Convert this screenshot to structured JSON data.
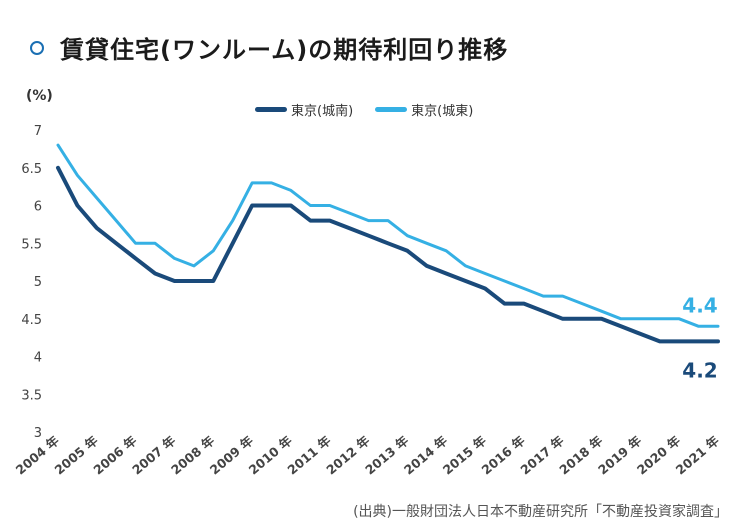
{
  "title": "賃貸住宅(ワンルーム)の期待利回り推移",
  "unit_label": "(%)",
  "source": "(出典)一般財団法人日本不動産研究所「不動産投資家調査」",
  "colors": {
    "south": "#1a4a7a",
    "east": "#35b0e4",
    "axis_text": "#444444"
  },
  "chart_data": {
    "type": "line",
    "title": "賃貸住宅(ワンルーム)の期待利回り推移",
    "ylabel": "(%)",
    "ylim": [
      3,
      7
    ],
    "yticks": [
      "3",
      "3.5",
      "4",
      "4.5",
      "5",
      "5.5",
      "6",
      "6.5",
      "7"
    ],
    "x_labels": [
      "2004 年",
      "2005 年",
      "2006 年",
      "2007 年",
      "2008 年",
      "2009 年",
      "2010 年",
      "2011 年",
      "2012 年",
      "2013 年",
      "2014 年",
      "2015 年",
      "2016 年",
      "2017 年",
      "2018 年",
      "2019 年",
      "2020 年",
      "2021 年"
    ],
    "x": [
      2004.0,
      2004.5,
      2005.0,
      2005.5,
      2006.0,
      2006.5,
      2007.0,
      2007.5,
      2008.0,
      2008.5,
      2009.0,
      2009.5,
      2010.0,
      2010.5,
      2011.0,
      2011.5,
      2012.0,
      2012.5,
      2013.0,
      2013.5,
      2014.0,
      2014.5,
      2015.0,
      2015.5,
      2016.0,
      2016.5,
      2017.0,
      2017.5,
      2018.0,
      2018.5,
      2019.0,
      2019.5,
      2020.0,
      2020.5,
      2021.0
    ],
    "series": [
      {
        "name": "東京(城南)",
        "end_label": "4.2",
        "values": [
          6.5,
          6.0,
          5.7,
          5.5,
          5.3,
          5.1,
          5.0,
          5.0,
          5.0,
          5.5,
          6.0,
          6.0,
          6.0,
          5.8,
          5.8,
          5.7,
          5.6,
          5.5,
          5.4,
          5.2,
          5.1,
          5.0,
          4.9,
          4.7,
          4.7,
          4.6,
          4.5,
          4.5,
          4.5,
          4.4,
          4.3,
          4.2,
          4.2,
          4.2,
          4.2
        ]
      },
      {
        "name": "東京(城東)",
        "end_label": "4.4",
        "values": [
          6.8,
          6.4,
          6.1,
          5.8,
          5.5,
          5.5,
          5.3,
          5.2,
          5.4,
          5.8,
          6.3,
          6.3,
          6.2,
          6.0,
          6.0,
          5.9,
          5.8,
          5.8,
          5.6,
          5.5,
          5.4,
          5.2,
          5.1,
          5.0,
          4.9,
          4.8,
          4.8,
          4.7,
          4.6,
          4.5,
          4.5,
          4.5,
          4.5,
          4.4,
          4.4
        ]
      }
    ],
    "grid": false,
    "legend_position": "top-center"
  }
}
